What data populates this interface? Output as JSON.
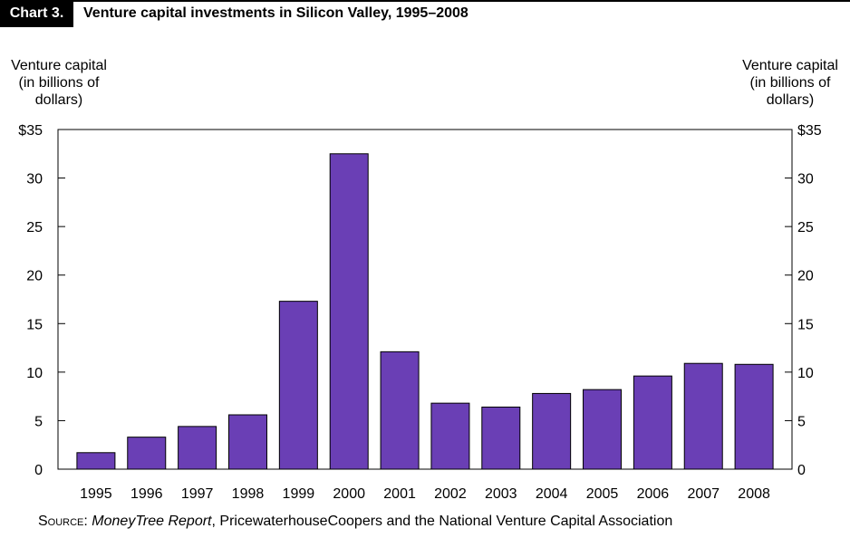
{
  "header": {
    "chart_number": "Chart 3.",
    "title": "Venture capital investments in Silicon Valley, 1995–2008"
  },
  "axis_labels": {
    "left": "Venture capital\n(in billions of\ndollars)",
    "right": "Venture capital\n(in billions of\ndollars)"
  },
  "source": {
    "label": "Source:",
    "publication": "MoneyTree Report",
    "rest": ", PricewaterhouseCoopers and the National Venture Capital Association"
  },
  "colors": {
    "bar": "#6a3fb5",
    "bar_stroke": "#000000"
  },
  "chart_data": {
    "type": "bar",
    "title": "Venture capital investments in Silicon Valley, 1995–2008",
    "categories": [
      "1995",
      "1996",
      "1997",
      "1998",
      "1999",
      "2000",
      "2001",
      "2002",
      "2003",
      "2004",
      "2005",
      "2006",
      "2007",
      "2008"
    ],
    "values": [
      1.7,
      3.3,
      4.4,
      5.6,
      17.3,
      32.5,
      12.1,
      6.8,
      6.4,
      7.8,
      8.2,
      9.6,
      10.9,
      10.8
    ],
    "ylabel": "Venture capital (in billions of dollars)",
    "ylim": [
      0,
      35
    ],
    "yticks": [
      0,
      5,
      10,
      15,
      20,
      25,
      30,
      35
    ],
    "ytick_labels": [
      "0",
      "5",
      "10",
      "15",
      "20",
      "25",
      "30",
      "$35"
    ],
    "grid": false,
    "legend": "none"
  }
}
